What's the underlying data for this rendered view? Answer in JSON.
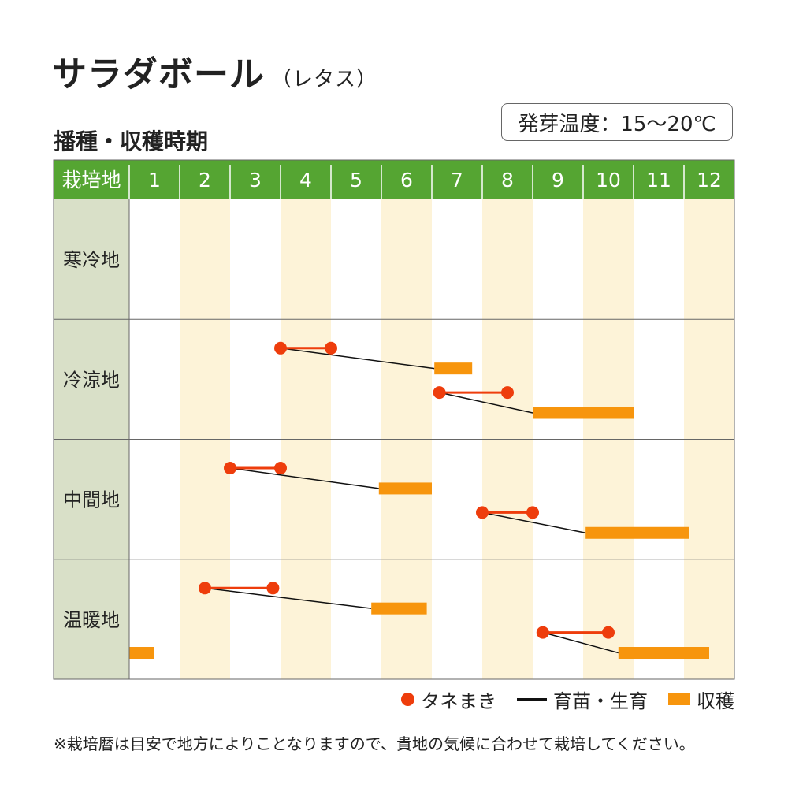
{
  "title": "サラダボール",
  "title_sub": "（レタス）",
  "subtitle": "播種・収穫時期",
  "germination_temp": "発芽温度：15～20℃",
  "colors": {
    "header_green": "#55a532",
    "region_bg": "#d9e0c8",
    "stripe": "#fdf3d8",
    "sowing": "#ee3d0c",
    "harvest": "#f7950d",
    "seedling": "#111111",
    "grid": "#666666"
  },
  "chart_data": {
    "type": "table",
    "header_label": "栽培地",
    "months": [
      "1",
      "2",
      "3",
      "4",
      "5",
      "6",
      "7",
      "8",
      "9",
      "10",
      "11",
      "12"
    ],
    "x_unit": "month",
    "rows": [
      {
        "region": "寒冷地",
        "schedules": []
      },
      {
        "region": "冷涼地",
        "schedules": [
          {
            "sow": [
              4.0,
              5.0
            ],
            "harvest": [
              7.05,
              7.8
            ]
          },
          {
            "sow": [
              7.15,
              8.5
            ],
            "harvest": [
              9.0,
              11.0
            ]
          }
        ]
      },
      {
        "region": "中間地",
        "schedules": [
          {
            "sow": [
              3.0,
              4.0
            ],
            "harvest": [
              5.95,
              7.0
            ]
          },
          {
            "sow": [
              8.0,
              9.0
            ],
            "harvest": [
              10.05,
              12.1
            ]
          }
        ]
      },
      {
        "region": "温暖地",
        "schedules": [
          {
            "sow": [
              2.5,
              3.85
            ],
            "harvest": [
              5.8,
              6.9
            ]
          },
          {
            "sow": [
              9.2,
              10.5
            ],
            "harvest": [
              10.7,
              12.5
            ]
          },
          {
            "harvest": [
              1.0,
              1.5
            ]
          }
        ]
      }
    ],
    "legend": [
      "タネまき",
      "育苗・生育",
      "収穫"
    ]
  },
  "footnote": "※栽培暦は目安で地方によりことなりますので、貴地の気候に合わせて栽培してください。"
}
